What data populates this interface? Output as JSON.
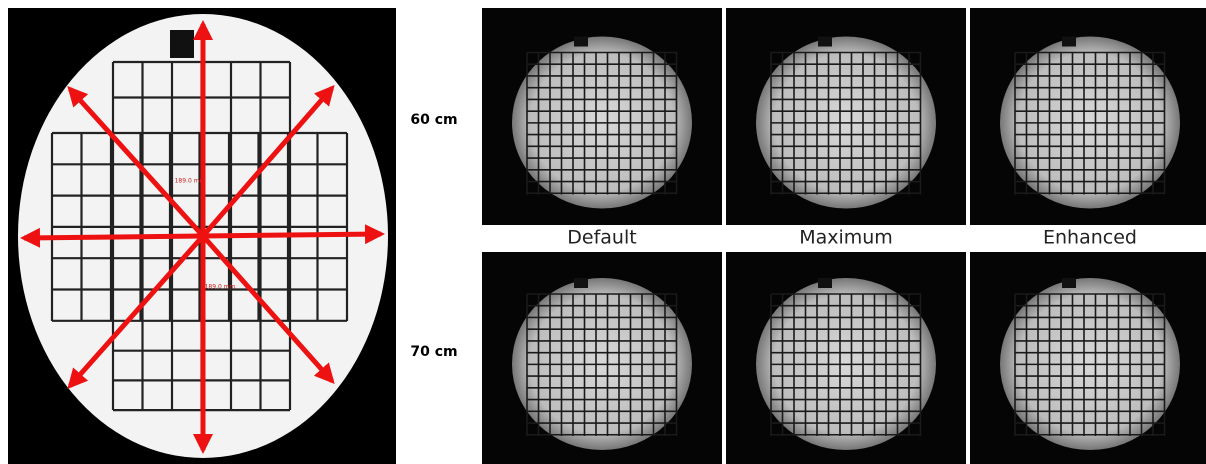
{
  "left_panel": {
    "measurements": [
      "189.0 mm",
      "189.0 mm"
    ]
  },
  "row_labels": [
    "60 cm",
    "70 cm"
  ],
  "column_labels": [
    "Default",
    "Maximum",
    "Enhanced"
  ]
}
